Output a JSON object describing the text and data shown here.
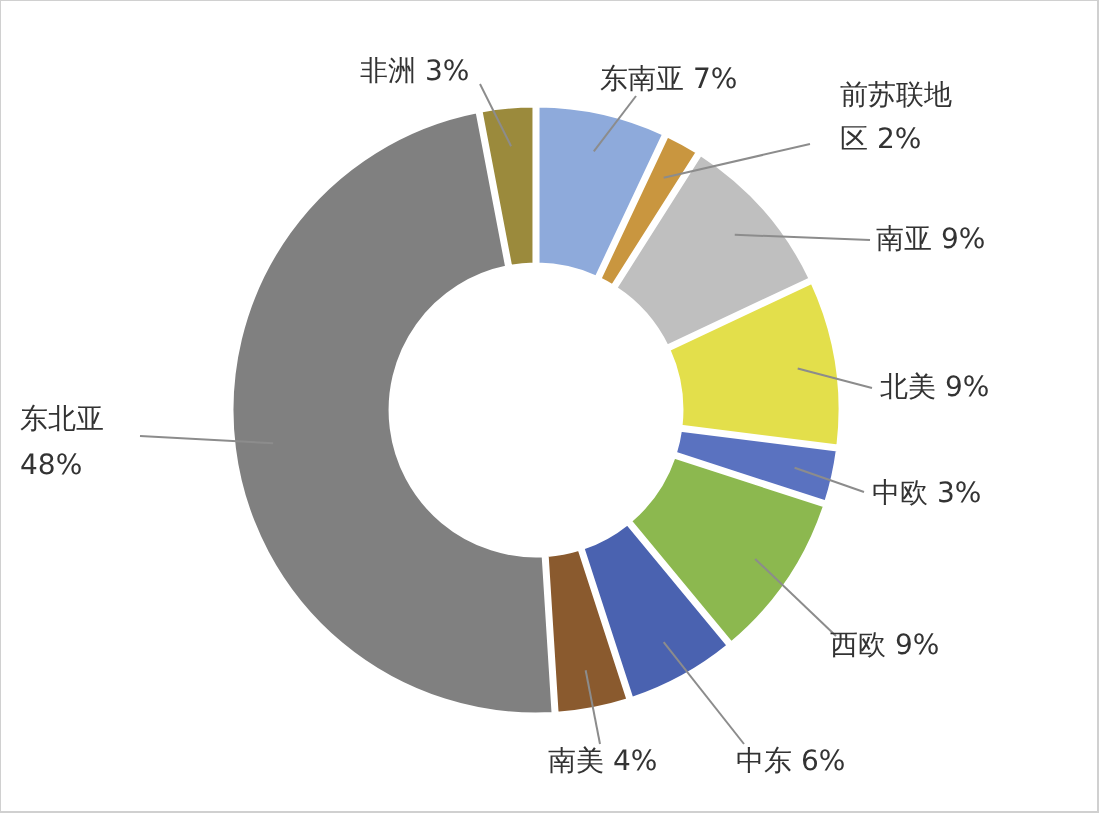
{
  "chart_data": {
    "type": "donut",
    "categories": [
      "东南亚",
      "前苏联地区",
      "南亚",
      "北美",
      "中欧",
      "西欧",
      "中东",
      "南美",
      "东北亚",
      "非洲"
    ],
    "values": [
      7,
      2,
      9,
      9,
      3,
      9,
      6,
      4,
      48,
      3
    ],
    "value_labels": [
      "7%",
      "2%",
      "9%",
      "9%",
      "3%",
      "9%",
      "6%",
      "4%",
      "48%",
      "3%"
    ],
    "colors": [
      "#8eaadb",
      "#c9963f",
      "#bfbfbf",
      "#e3df4b",
      "#5a72c0",
      "#8cb84f",
      "#4a62b0",
      "#8a5a2e",
      "#808080",
      "#9b8a3c"
    ]
  }
}
